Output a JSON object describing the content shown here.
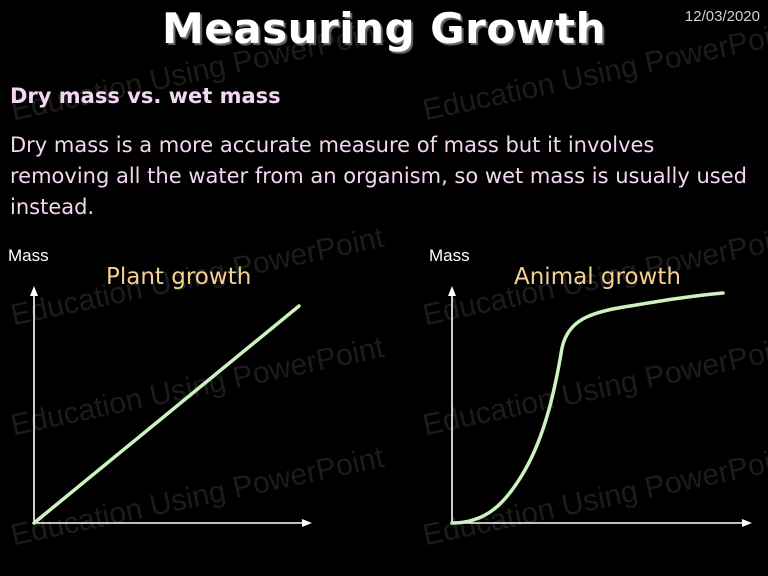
{
  "slide": {
    "title": "Measuring Growth",
    "date": "12/03/2020",
    "subheading": "Dry mass vs. wet mass",
    "body": "Dry mass is a more accurate measure of mass but it involves removing all the water from an organism, so wet mass is usually used instead.",
    "watermark": "Education Using PowerPoint"
  },
  "graphs": {
    "plant": {
      "title": "Plant growth",
      "y_axis_label": "Mass",
      "curve": "linear"
    },
    "animal": {
      "title": "Animal growth",
      "y_axis_label": "Mass",
      "curve": "sigmoid"
    }
  },
  "colors": {
    "background": "#000000",
    "text": "#f2d6f2",
    "graph_title": "#f5cf93",
    "curve": "#ccf2c2",
    "axis": "#ffffff"
  }
}
